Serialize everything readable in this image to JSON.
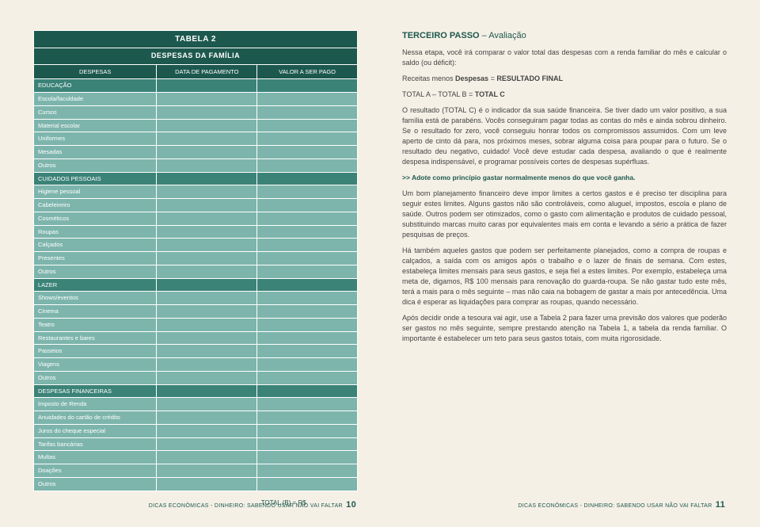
{
  "table": {
    "title1": "TABELA 2",
    "title2": "DESPESAS DA FAMÍLIA",
    "headers": [
      "DESPESAS",
      "DATA DE PAGAMENTO",
      "VALOR A SER PAGO"
    ],
    "groups": [
      {
        "category": "EDUCAÇÃO",
        "items": [
          "Escola/faculdade",
          "Cursos",
          "Material escolar",
          "Uniformes",
          "Mesadas",
          "Outros"
        ]
      },
      {
        "category": "CUIDADOS PESSOAIS",
        "items": [
          "Higiene pessoal",
          "Cabeleireiro",
          "Cosméticos",
          "Roupas",
          "Calçados",
          "Presentes",
          "Outros"
        ]
      },
      {
        "category": "LAZER",
        "items": [
          "Shows/eventos",
          "Cinema",
          "Teatro",
          "Restaurantes e bares",
          "Passeios",
          "Viagens",
          "Outros"
        ]
      },
      {
        "category": "DESPESAS FINANCEIRAS",
        "items": [
          "Imposto de Renda",
          "Anuidades do cartão de crédito",
          "Juros do cheque especial",
          "Tarifas bancárias",
          "Multas",
          "Doações",
          "Outros"
        ]
      }
    ],
    "total_label": "TOTAL (B) = R$"
  },
  "right": {
    "step_title_strong": "TERCEIRO PASSO",
    "step_title_light": " – Avaliação",
    "p_intro": "Nessa etapa, você irá comparar o valor total das despesas com a renda familiar do mês e calcular o saldo (ou déficit):",
    "p_formula1_pre": "Receitas menos ",
    "p_formula1_mid": "Despesas",
    "p_formula1_eq": " = ",
    "p_formula1_res": "RESULTADO FINAL",
    "p_formula2": "TOTAL A – TOTAL B = ",
    "p_formula2_res": "TOTAL C",
    "p_body1": "O resultado (TOTAL C) é o indicador da sua saúde financeira. Se tiver dado um valor positivo, a sua família está de parabéns. Vocês conseguiram pagar todas as contas do mês e ainda sobrou dinheiro. Se o resultado for zero, você conseguiu honrar todos os compromissos assumidos. Com um leve aperto de cinto dá para, nos próximos meses, sobrar alguma coisa para poupar para o futuro. Se o resultado deu negativo, cuidado! Você deve estudar cada despesa, avaliando o que é realmente despesa indispensável, e programar possíveis cortes de despesas supérfluas.",
    "p_green": ">> Adote como princípio gastar normalmente menos do que você ganha.",
    "p_body2": "Um bom planejamento financeiro deve impor limites a certos gastos e é preciso ter disciplina para seguir estes limites. Alguns gastos não são controláveis, como aluguel, impostos, escola e plano de saúde. Outros podem ser otimizados, como o gasto com alimentação e produtos de cuidado pessoal, substituindo marcas muito caras por equivalentes mais em conta e levando a sério a prática de fazer pesquisas de preços.",
    "p_body3": "Há também aqueles gastos que podem ser perfeitamente planejados, como a compra de roupas e calçados, a saída com os amigos após o trabalho e o lazer de finais de semana. Com estes, estabeleça limites mensais para seus gastos, e seja fiel a estes limites. Por exemplo, estabeleça uma meta de, digamos, R$ 100 mensais para renovação do guarda-roupa. Se não gastar tudo este mês, terá a mais para o mês seguinte – mas não caia na bobagem de gastar a mais por antecedência. Uma dica é esperar as liquidações para comprar as roupas, quando necessário.",
    "p_body4": "Após decidir onde a tesoura vai agir, use a Tabela 2 para fazer uma previsão dos valores que poderão ser gastos no mês seguinte, sempre prestando atenção na Tabela 1, a tabela da renda familiar. O importante é estabelecer um teto para seus gastos totais, com muita rigorosidade."
  },
  "footer": {
    "text": "DICAS ECONÔMICAS - DINHEIRO: SABENDO USAR NÃO VAI FALTAR",
    "left_num": "10",
    "right_num": "11"
  }
}
